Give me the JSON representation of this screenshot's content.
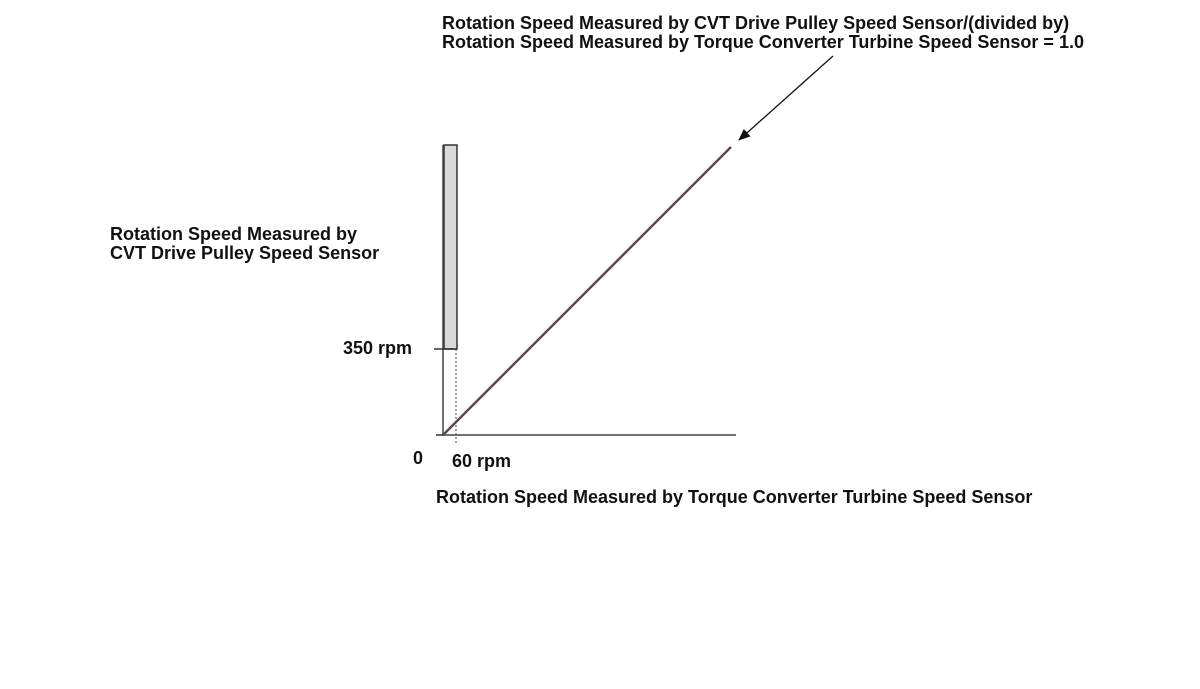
{
  "annotation": {
    "line1": "Rotation Speed Measured by CVT Drive Pulley Speed Sensor/(divided by)",
    "line2": "Rotation Speed Measured by Torque Converter Turbine Speed Sensor = 1.0"
  },
  "y_axis": {
    "line1": "Rotation Speed Measured by",
    "line2": "CVT Drive Pulley Speed Sensor"
  },
  "x_axis": {
    "label": "Rotation Speed Measured by Torque Converter Turbine Speed Sensor"
  },
  "ticks": {
    "y_threshold": "350 rpm",
    "origin": "0",
    "x_threshold": "60 rpm"
  },
  "colors": {
    "axis": "#444444",
    "ratio_line": "#5a4a4a",
    "band_fill": "#d9d9d9",
    "band_stroke": "#333333",
    "text": "#111111"
  }
}
